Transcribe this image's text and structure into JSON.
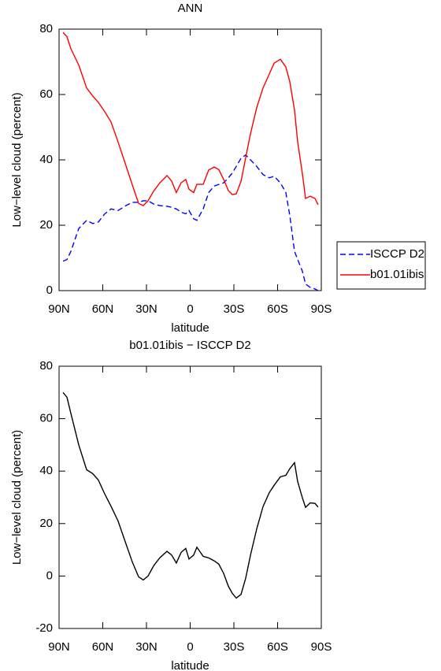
{
  "chart_data": [
    {
      "type": "line",
      "title": "ANN",
      "xlabel": "latitude",
      "ylabel": "Low−level cloud (percent)",
      "x": [
        87.3,
        84.6,
        81.9,
        76.5,
        71.1,
        66.8,
        63,
        58.6,
        54.3,
        49.5,
        44.1,
        39.7,
        35.4,
        32.2,
        28.9,
        25.1,
        20.8,
        15.9,
        12.7,
        9.5,
        6.2,
        3,
        0.8,
        -2.4,
        -4.6,
        -8.9,
        -12.7,
        -16.5,
        -19.7,
        -23,
        -26.2,
        -28.9,
        -31.6,
        -34.9,
        -38.1,
        -41.4,
        -45.7,
        -50,
        -54.3,
        -57.6,
        -61.9,
        -65.7,
        -68.4,
        -71.6,
        -73.8,
        -77,
        -79.2,
        -82.4,
        -85.7,
        -87.8
      ],
      "series": [
        {
          "name": "ISCCP D2",
          "color": "#0000ff",
          "linestyle": "dashed",
          "values": [
            9,
            9.5,
            12,
            19,
            21.5,
            20.5,
            21,
            23.5,
            25,
            24.5,
            26,
            27,
            27,
            27.5,
            27.5,
            26.5,
            26,
            25.8,
            25.5,
            25,
            24,
            23.5,
            24.5,
            22,
            21.5,
            25,
            30,
            32,
            32.5,
            33,
            34.5,
            36,
            38,
            40.5,
            41.5,
            40,
            38,
            35.5,
            34.5,
            35,
            33,
            30,
            23,
            12,
            9.5,
            6,
            2,
            1,
            0.5,
            0
          ]
        },
        {
          "name": "b01.01ibis",
          "color": "#ff0000",
          "linestyle": "solid",
          "values": [
            79,
            77.7,
            74,
            69,
            62,
            59.5,
            57.6,
            54.7,
            51.6,
            45.5,
            38.3,
            32.3,
            26.7,
            26,
            27.5,
            30.4,
            33,
            35.2,
            33.5,
            30,
            33,
            34,
            31,
            30,
            32.5,
            32.5,
            36.9,
            37.8,
            37,
            34,
            30.6,
            29.4,
            29.6,
            33.5,
            40.7,
            48,
            56,
            62,
            66.3,
            69.6,
            70.8,
            68.4,
            63.9,
            55.2,
            45.5,
            35.9,
            28.2,
            28.9,
            28.2,
            26.3
          ]
        }
      ],
      "xlim": [
        90,
        -90
      ],
      "xticks": [
        {
          "value": 90,
          "label": "90N"
        },
        {
          "value": 60,
          "label": "60N"
        },
        {
          "value": 30,
          "label": "30N"
        },
        0,
        {
          "value": -30,
          "label": "30S"
        },
        {
          "value": -60,
          "label": "60S"
        },
        {
          "value": -90,
          "label": "90S"
        }
      ],
      "ylim": [
        0,
        80
      ],
      "yticks": [
        0,
        20,
        40,
        60,
        80
      ],
      "legend": "right"
    },
    {
      "type": "line",
      "title": "b01.01ibis − ISCCP D2",
      "xlabel": "latitude",
      "ylabel": "Low−level cloud (percent)",
      "x": [
        87.3,
        84.6,
        81.9,
        76.5,
        71.1,
        66.8,
        63,
        58.6,
        54.3,
        49.5,
        44.1,
        39.7,
        35.4,
        32.2,
        28.9,
        25.1,
        20.8,
        15.9,
        12.7,
        9.5,
        6.2,
        3,
        0.8,
        -2.4,
        -4.6,
        -8.9,
        -12.7,
        -16.5,
        -19.7,
        -23,
        -26.2,
        -28.9,
        -31.6,
        -34.9,
        -38.1,
        -41.4,
        -45.7,
        -50,
        -54.3,
        -57.6,
        -61.9,
        -65.7,
        -68.4,
        -71.6,
        -73.8,
        -77,
        -79.2,
        -82.4,
        -85.7,
        -87.8
      ],
      "series": [
        {
          "color": "#000000",
          "linestyle": "solid",
          "values": [
            70,
            68.2,
            62,
            50,
            40.5,
            39,
            36.6,
            31.2,
            26.6,
            21,
            12.3,
            5.3,
            -0.3,
            -1.5,
            0,
            3.9,
            7,
            9.4,
            8,
            5,
            9,
            10.5,
            6.5,
            8,
            11,
            7.5,
            6.9,
            5.8,
            4.5,
            1,
            -3.9,
            -6.6,
            -8.4,
            -7,
            -0.8,
            8,
            18,
            26.5,
            31.8,
            34.6,
            37.8,
            38.4,
            40.9,
            43.2,
            36,
            29.9,
            26.2,
            27.9,
            27.7,
            26.3
          ]
        }
      ],
      "xlim": [
        90,
        -90
      ],
      "xticks": [
        {
          "value": 90,
          "label": "90N"
        },
        {
          "value": 60,
          "label": "60N"
        },
        {
          "value": 30,
          "label": "30N"
        },
        0,
        {
          "value": -30,
          "label": "30S"
        },
        {
          "value": -60,
          "label": "60S"
        },
        {
          "value": -90,
          "label": "90S"
        }
      ],
      "ylim": [
        -20,
        80
      ],
      "yticks": [
        -20,
        0,
        20,
        40,
        60,
        80
      ]
    }
  ]
}
